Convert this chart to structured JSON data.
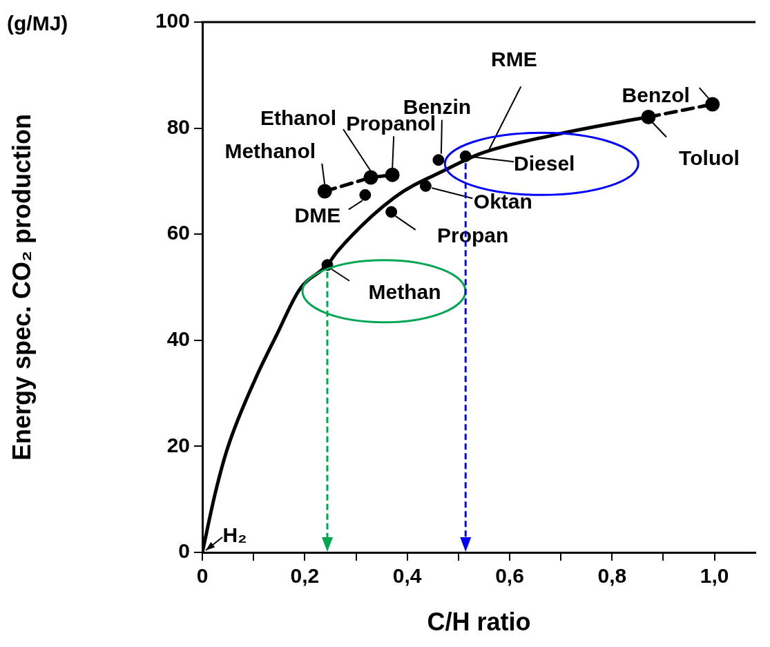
{
  "chart_data": {
    "type": "scatter",
    "xlabel": "C/H ratio",
    "ylabel": "Energy spec. CO₂ production",
    "xlim": [
      0,
      1.08
    ],
    "ylim": [
      0,
      100
    ],
    "xticks": [
      0,
      {
        "value": 0.1,
        "label": null
      },
      {
        "value": 0.2,
        "label": "0,2"
      },
      {
        "value": 0.3,
        "label": null
      },
      {
        "value": 0.4,
        "label": "0,4"
      },
      {
        "value": 0.5,
        "label": null
      },
      {
        "value": 0.6,
        "label": "0,6"
      },
      {
        "value": 0.7,
        "label": null
      },
      {
        "value": 0.8,
        "label": "0,8"
      },
      {
        "value": 0.9,
        "label": null
      },
      {
        "value": 1.0,
        "label": "1,0"
      }
    ],
    "yticks": [
      0,
      20,
      40,
      60,
      80,
      100
    ],
    "series": [
      {
        "type": "line",
        "color": "#000000",
        "marker": "none",
        "line_style": "solid",
        "x": [
          0,
          0.025,
          0.049,
          0.102,
          0.145,
          0.19,
          0.244,
          0.264,
          0.376,
          0.476,
          0.546,
          0.686,
          0.841,
          0.871
        ],
        "values": [
          0,
          11.1,
          19.6,
          32.4,
          41,
          49.6,
          54.2,
          56.8,
          67,
          72.2,
          75.3,
          78.7,
          81.6,
          82.1
        ]
      },
      {
        "type": "line",
        "color": "#000000",
        "marker": "circle",
        "line_style": "dashed",
        "x": [
          0.239,
          0.329,
          0.371
        ],
        "values": [
          68.1,
          70.7,
          71.2
        ]
      },
      {
        "type": "line",
        "color": "#000000",
        "marker": "circle",
        "line_style": "dashed",
        "x": [
          0.871,
          0.996
        ],
        "values": [
          82.1,
          84.5
        ]
      },
      {
        "type": "scatter",
        "color": "#000000",
        "marker": "circle",
        "x": [
          0.318,
          0.369,
          0.244,
          0.436,
          0.461,
          0.514
        ],
        "values": [
          67.4,
          64.2,
          54.2,
          69.1,
          74.0,
          74.7
        ]
      }
    ],
    "annotations": [
      "(g/MJ)",
      {
        "text": "Methanol",
        "x": 0.239,
        "y": 68.1
      },
      {
        "text": "Ethanol",
        "x": 0.329,
        "y": 70.7
      },
      {
        "text": "Propanol",
        "x": 0.371,
        "y": 71.2
      },
      {
        "text": "DME",
        "x": 0.318,
        "y": 67.4
      },
      {
        "text": "Propan",
        "x": 0.369,
        "y": 64.2
      },
      {
        "text": "Methan",
        "x": 0.244,
        "y": 54.2
      },
      {
        "text": "Oktan",
        "x": 0.436,
        "y": 69.1
      },
      {
        "text": "Benzin",
        "x": 0.461,
        "y": 74.0
      },
      {
        "text": "Diesel",
        "x": 0.514,
        "y": 74.7
      },
      {
        "text": "Toluol",
        "x": 0.871,
        "y": 82.1
      },
      {
        "text": "Benzol",
        "x": 0.996,
        "y": 84.5
      },
      {
        "text": "RME",
        "x": 0.56,
        "y": 76
      },
      {
        "text": "H₂",
        "x": 0,
        "y": 0
      }
    ]
  }
}
